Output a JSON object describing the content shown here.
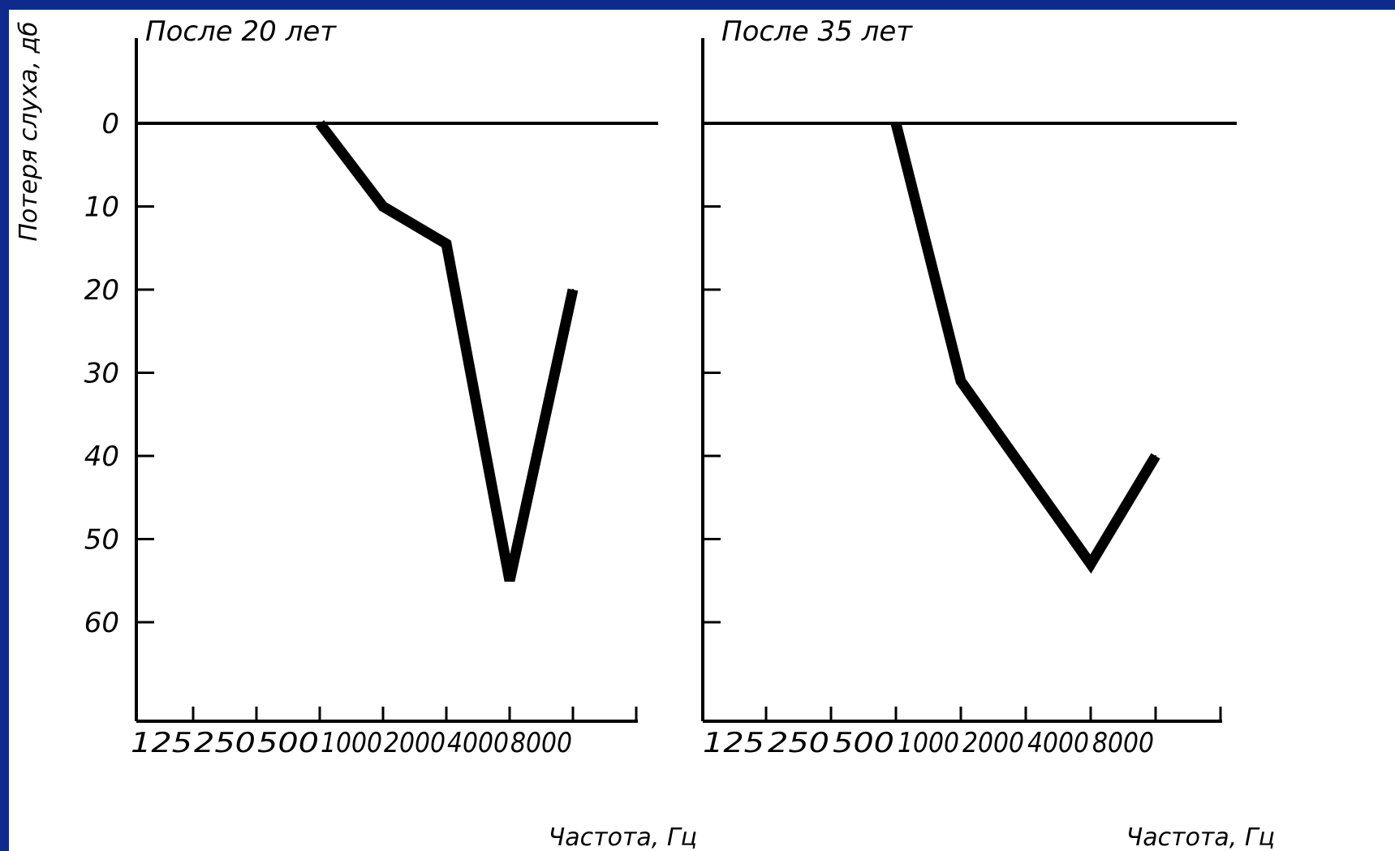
{
  "chart_data": [
    {
      "type": "line",
      "title": "После   20 лет",
      "xlabel": "Частота, Гц",
      "ylabel": "Потеря слуха, дб",
      "categories": [
        "125",
        "250",
        "500",
        "1000",
        "2000",
        "4000",
        "8000"
      ],
      "x_tick_labels": [
        "125",
        "250",
        "500",
        "1000",
        "2000",
        "4000",
        "8000"
      ],
      "y_tick_labels": [
        "0",
        "10",
        "20",
        "30",
        "40",
        "50",
        "60"
      ],
      "yticks": [
        0,
        10,
        20,
        30,
        40,
        50,
        60
      ],
      "ylim": [
        -10,
        71
      ],
      "y_inverted": true,
      "grid": false,
      "series": [
        {
          "values": [
            null,
            null,
            0,
            10,
            14.5,
            55,
            20
          ]
        }
      ]
    },
    {
      "type": "line",
      "title": "После   35 лет",
      "xlabel": "Частота, Гц",
      "ylabel": "",
      "categories": [
        "125",
        "250",
        "500",
        "1000",
        "2000",
        "4000",
        "8000"
      ],
      "x_tick_labels": [
        "125",
        "250",
        "500",
        "1000",
        "2000",
        "4000",
        "8000"
      ],
      "y_tick_labels": [],
      "yticks": [
        0,
        10,
        20,
        30,
        40,
        50,
        60
      ],
      "ylim": [
        -10,
        71
      ],
      "y_inverted": true,
      "grid": false,
      "series": [
        {
          "values": [
            null,
            null,
            0,
            31,
            42,
            53,
            40
          ]
        }
      ]
    }
  ]
}
